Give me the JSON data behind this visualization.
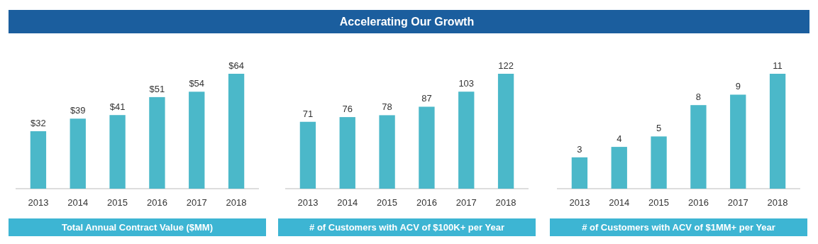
{
  "chart_data": [
    {
      "type": "bar",
      "categories": [
        "2013",
        "2014",
        "2015",
        "2016",
        "2017",
        "2018"
      ],
      "values": [
        32,
        39,
        41,
        51,
        54,
        64
      ],
      "value_labels": [
        "$32",
        "$39",
        "$41",
        "$51",
        "$54",
        "$64"
      ],
      "color": "#4bb8c9",
      "xlabel": "Total Annual Contract Value ($MM)"
    },
    {
      "type": "bar",
      "title": "Accelerating Our Growth",
      "categories": [
        "2013",
        "2014",
        "2015",
        "2016",
        "2017",
        "2018"
      ],
      "values": [
        71,
        76,
        78,
        87,
        103,
        122
      ],
      "data_labels": true,
      "color": "#4bb8c9",
      "xlabel": "# of Customers with ACV of $100K+ per Year"
    },
    {
      "type": "bar",
      "categories": [
        "2013",
        "2014",
        "2015",
        "2016",
        "2017",
        "2018"
      ],
      "values": [
        3,
        4,
        5,
        8,
        9,
        11
      ],
      "data_labels": true,
      "color": "#4bb8c9",
      "xlabel": "# of Customers with ACV of $1MM+ per Year"
    }
  ]
}
